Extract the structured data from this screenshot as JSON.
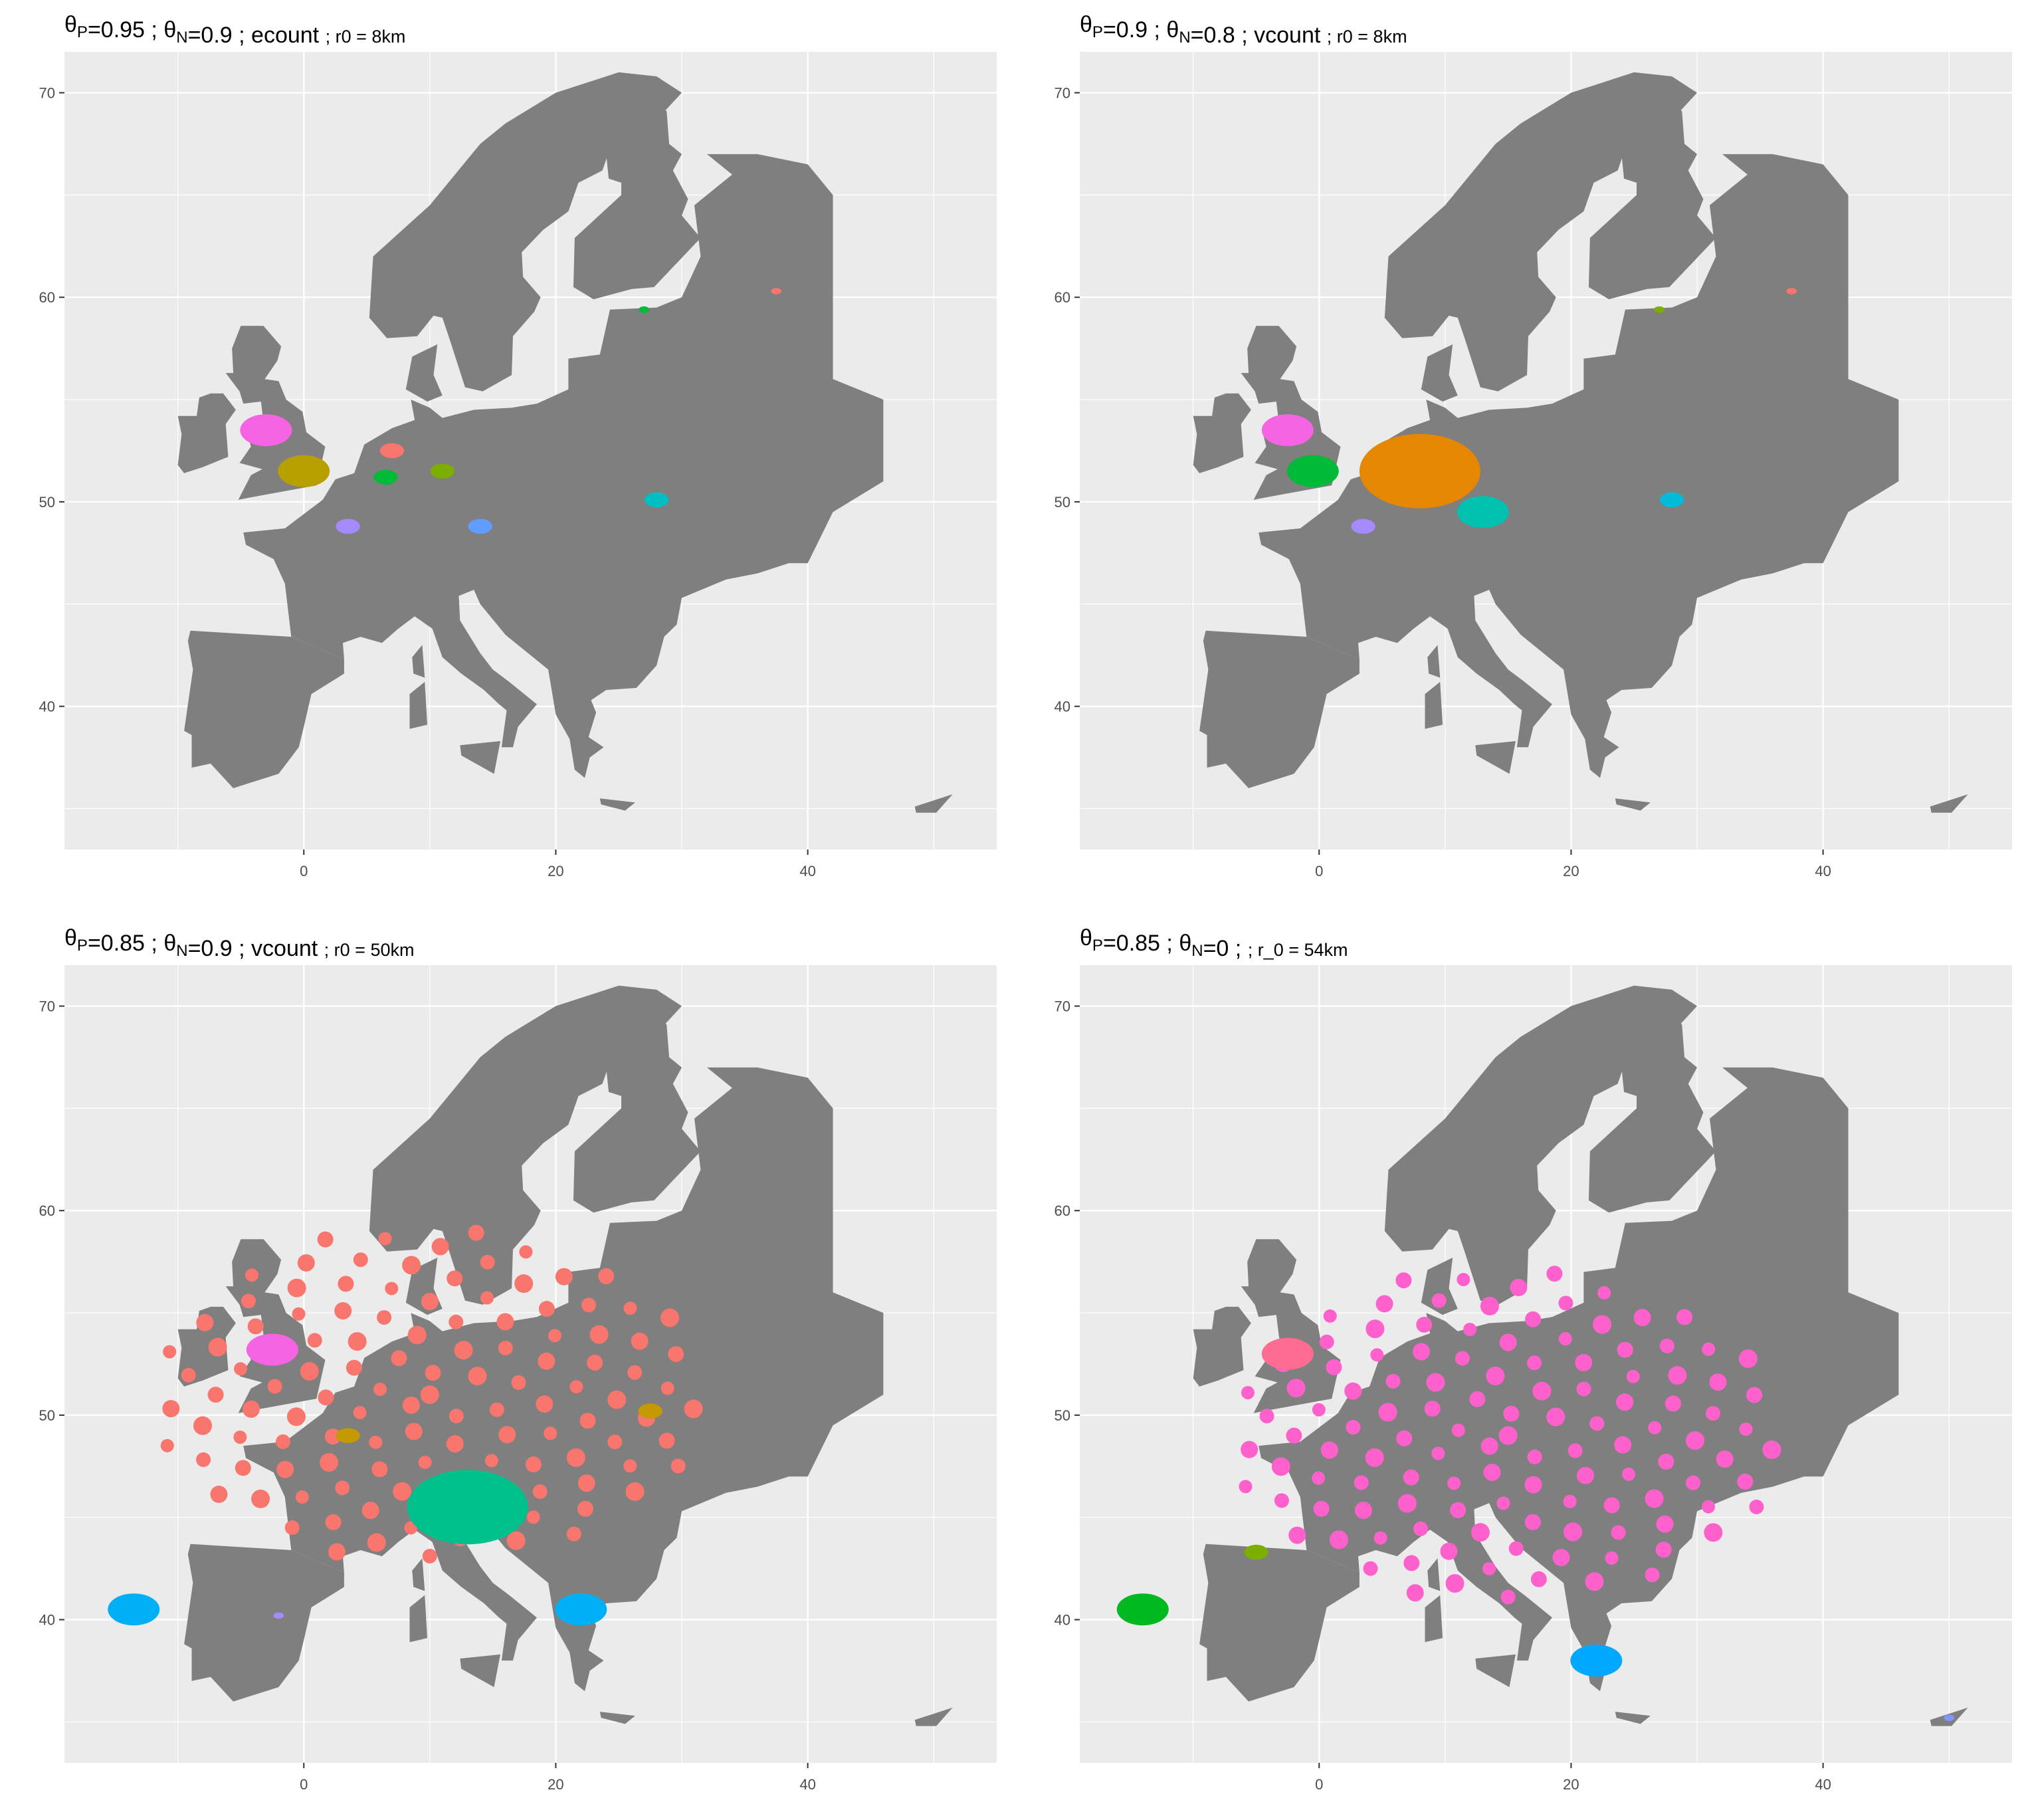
{
  "figure": {
    "background": "#ffffff",
    "panel_background": "#ebebeb",
    "grid_color": "#ffffff",
    "land_color": "#7f7f7f",
    "tick_text_color": "#4d4d4d"
  },
  "panels": [
    {
      "title": {
        "theta_p": "0.95",
        "theta_n": "0.9",
        "measure": "ecount",
        "radius": "r0 = 8km"
      },
      "x_ticks": [
        "0",
        "20",
        "40"
      ],
      "y_ticks": [
        "40",
        "50",
        "60",
        "70"
      ],
      "clusters": [
        {
          "color": "#f564e3",
          "lon": -3,
          "lat": 53.5,
          "size": "medium"
        },
        {
          "color": "#b79f00",
          "lon": 0,
          "lat": 51.5,
          "size": "medium"
        },
        {
          "color": "#f8766d",
          "lon": 7,
          "lat": 52.5,
          "size": "small"
        },
        {
          "color": "#00ba38",
          "lon": 6.5,
          "lat": 51.2,
          "size": "small"
        },
        {
          "color": "#7cae00",
          "lon": 11,
          "lat": 51.5,
          "size": "small"
        },
        {
          "color": "#619cff",
          "lon": 14,
          "lat": 48.8,
          "size": "small"
        },
        {
          "color": "#a58aff",
          "lon": 3.5,
          "lat": 48.8,
          "size": "small"
        },
        {
          "color": "#00bfc4",
          "lon": 28,
          "lat": 50.1,
          "size": "small"
        },
        {
          "color": "#f8766d",
          "lon": 37.5,
          "lat": 60.3,
          "size": "tiny"
        },
        {
          "color": "#00ba38",
          "lon": 27,
          "lat": 59.4,
          "size": "tiny"
        }
      ]
    },
    {
      "title": {
        "theta_p": "0.9",
        "theta_n": "0.8",
        "measure": "vcount",
        "radius": "r0 = 8km"
      },
      "x_ticks": [
        "0",
        "20",
        "40"
      ],
      "y_ticks": [
        "40",
        "50",
        "60",
        "70"
      ],
      "clusters": [
        {
          "color": "#f564e3",
          "lon": -2.5,
          "lat": 53.5,
          "size": "medium"
        },
        {
          "color": "#00ba38",
          "lon": -0.5,
          "lat": 51.5,
          "size": "medium"
        },
        {
          "color": "#e58700",
          "lon": 8,
          "lat": 51.5,
          "size": "large"
        },
        {
          "color": "#00c0af",
          "lon": 13,
          "lat": 49.5,
          "size": "medium"
        },
        {
          "color": "#00bcd8",
          "lon": 28,
          "lat": 50.1,
          "size": "small"
        },
        {
          "color": "#a58aff",
          "lon": 3.5,
          "lat": 48.8,
          "size": "small"
        },
        {
          "color": "#7cae00",
          "lon": 27,
          "lat": 59.4,
          "size": "tiny"
        },
        {
          "color": "#f8766d",
          "lon": 37.5,
          "lat": 60.3,
          "size": "tiny"
        }
      ]
    },
    {
      "title": {
        "theta_p": "0.85",
        "theta_n": "0.9",
        "measure": "vcount",
        "radius": "r0 = 50km"
      },
      "x_ticks": [
        "0",
        "20",
        "40"
      ],
      "y_ticks": [
        "40",
        "50",
        "60",
        "70"
      ],
      "clusters": [
        {
          "color": "#f8766d",
          "lon": 10,
          "lat": 51,
          "size": "huge"
        },
        {
          "color": "#f564e3",
          "lon": -2.5,
          "lat": 53.2,
          "size": "medium"
        },
        {
          "color": "#00c08b",
          "lon": 13,
          "lat": 45.5,
          "size": "large"
        },
        {
          "color": "#00b0f6",
          "lon": -13.5,
          "lat": 40.5,
          "size": "medium"
        },
        {
          "color": "#00b0f6",
          "lon": 22,
          "lat": 40.5,
          "size": "medium"
        },
        {
          "color": "#c49a00",
          "lon": 27.5,
          "lat": 50.2,
          "size": "small"
        },
        {
          "color": "#c49a00",
          "lon": 3.5,
          "lat": 49,
          "size": "small"
        },
        {
          "color": "#a58aff",
          "lon": -2,
          "lat": 40.2,
          "size": "tiny"
        }
      ]
    },
    {
      "title": {
        "theta_p": "0.85",
        "theta_n": "0",
        "measure": "",
        "radius": "r_0 = 54km"
      },
      "x_ticks": [
        "0",
        "20",
        "40"
      ],
      "y_ticks": [
        "40",
        "50",
        "60",
        "70"
      ],
      "clusters": [
        {
          "color": "#ff61cc",
          "lon": 15,
          "lat": 49,
          "size": "huge"
        },
        {
          "color": "#ff6c91",
          "lon": -2.5,
          "lat": 53,
          "size": "medium"
        },
        {
          "color": "#00b81f",
          "lon": -14,
          "lat": 40.5,
          "size": "medium"
        },
        {
          "color": "#00a9ff",
          "lon": 22,
          "lat": 38,
          "size": "medium"
        },
        {
          "color": "#7cae00",
          "lon": -5,
          "lat": 43.3,
          "size": "small"
        },
        {
          "color": "#8494ff",
          "lon": 50,
          "lat": 35.2,
          "size": "tiny"
        }
      ]
    }
  ]
}
